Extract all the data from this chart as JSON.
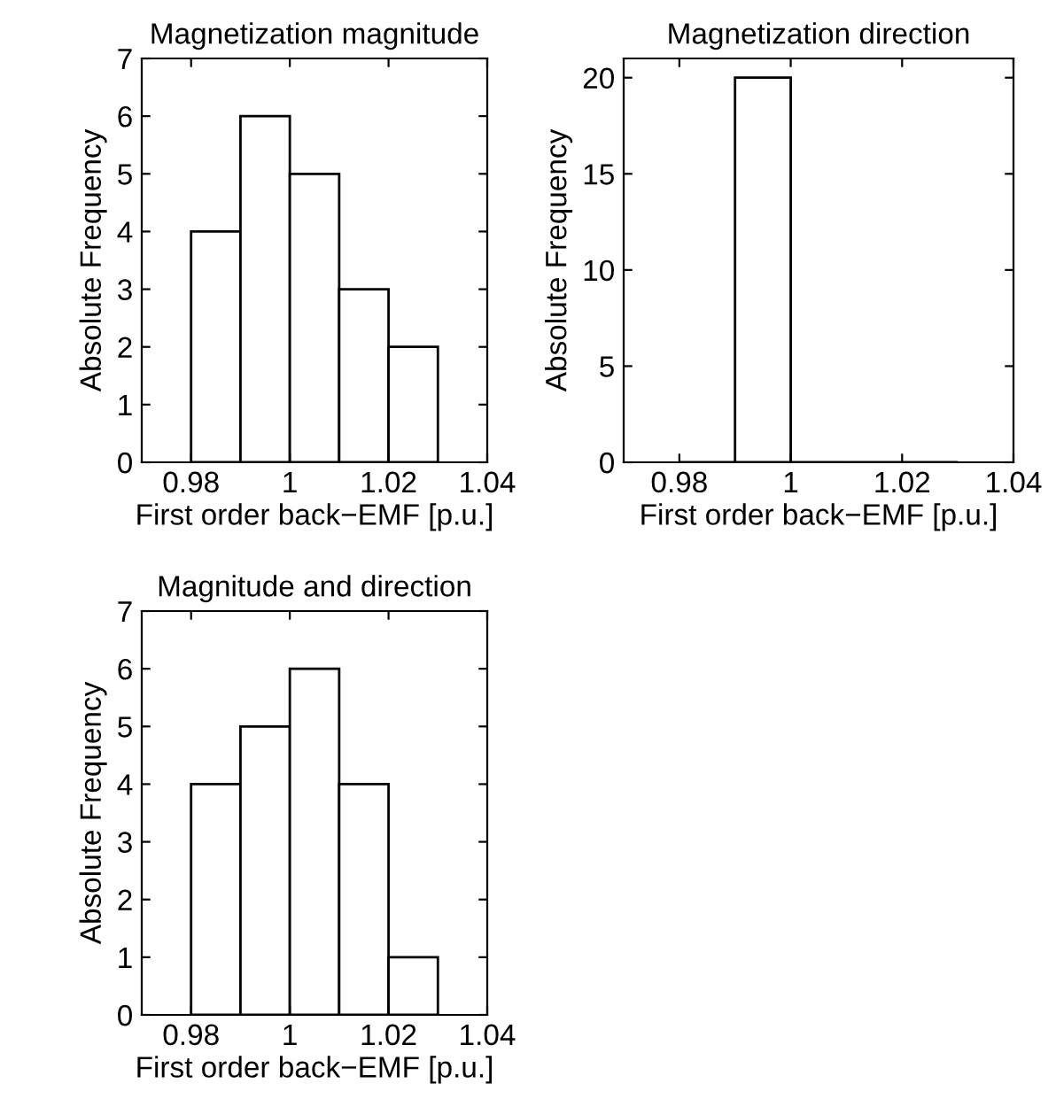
{
  "chart_data": [
    {
      "type": "histogram",
      "title": "Magnetization magnitude",
      "xlabel": "First order back−EMF [p.u.]",
      "ylabel": "Absolute Frequency",
      "bins": [
        0.98,
        0.99,
        1.0,
        1.01,
        1.02,
        1.03
      ],
      "values": [
        4,
        6,
        5,
        3,
        2
      ],
      "color": "#ffffff",
      "xlim": [
        0.97,
        1.04
      ],
      "xticks": [
        0.98,
        1,
        1.02,
        1.04
      ],
      "ylim": [
        0,
        7
      ],
      "yticks": [
        0,
        1,
        2,
        3,
        4,
        5,
        6,
        7
      ],
      "grid": false
    },
    {
      "type": "histogram",
      "title": "Magnetization direction",
      "xlabel": "First order back−EMF [p.u.]",
      "ylabel": "Absolute Frequency",
      "bins": [
        0.98,
        0.99,
        1.0,
        1.01,
        1.02,
        1.03
      ],
      "values": [
        0,
        20,
        0,
        0,
        0
      ],
      "color": "#ffffff",
      "xlim": [
        0.97,
        1.04
      ],
      "xticks": [
        0.98,
        1,
        1.02,
        1.04
      ],
      "ylim": [
        0,
        21
      ],
      "yticks": [
        0,
        5,
        10,
        15,
        20
      ],
      "grid": false
    },
    {
      "type": "histogram",
      "title": "Magnitude and direction",
      "xlabel": "First order back−EMF [p.u.]",
      "ylabel": "Absolute Frequency",
      "bins": [
        0.98,
        0.99,
        1.0,
        1.01,
        1.02,
        1.03
      ],
      "values": [
        4,
        5,
        6,
        4,
        1
      ],
      "color": "#ffffff",
      "xlim": [
        0.97,
        1.04
      ],
      "xticks": [
        0.98,
        1,
        1.02,
        1.04
      ],
      "ylim": [
        0,
        7
      ],
      "yticks": [
        0,
        1,
        2,
        3,
        4,
        5,
        6,
        7
      ],
      "grid": false
    }
  ]
}
